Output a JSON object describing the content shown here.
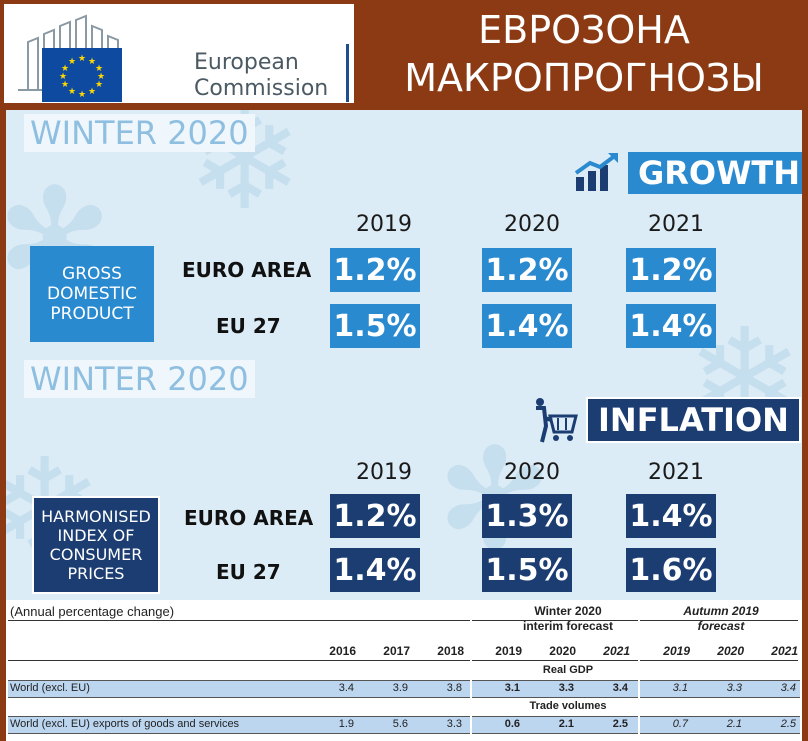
{
  "header": {
    "logo_line1": "European",
    "logo_line2": "Commission",
    "title_line1": "ЕВРОЗОНА",
    "title_line2": "МАКРОПРОГНОЗЫ"
  },
  "growth": {
    "season": "WINTER 2020",
    "category": "GROWTH",
    "indicator_lines": [
      "GROSS",
      "DOMESTIC",
      "PRODUCT"
    ],
    "years": [
      "2019",
      "2020",
      "2021"
    ],
    "rows": [
      {
        "label": "EURO AREA",
        "values": [
          "1.2%",
          "1.2%",
          "1.2%"
        ]
      },
      {
        "label": "EU 27",
        "values": [
          "1.5%",
          "1.4%",
          "1.4%"
        ]
      }
    ]
  },
  "inflation": {
    "season": "WINTER 2020",
    "category": "INFLATION",
    "indicator_lines": [
      "HARMONISED",
      "INDEX OF",
      "CONSUMER",
      "PRICES"
    ],
    "years": [
      "2019",
      "2020",
      "2021"
    ],
    "rows": [
      {
        "label": "EURO AREA",
        "values": [
          "1.2%",
          "1.3%",
          "1.4%"
        ]
      },
      {
        "label": "EU 27",
        "values": [
          "1.4%",
          "1.5%",
          "1.6%"
        ]
      }
    ]
  },
  "table": {
    "note": "(Annual percentage change)",
    "winter_head": [
      "Winter 2020",
      "interim forecast"
    ],
    "autumn_head": [
      "Autumn 2019",
      "forecast"
    ],
    "years": [
      "2016",
      "2017",
      "2018",
      "2019",
      "2020",
      "2021",
      "2019",
      "2020",
      "2021"
    ],
    "sections": [
      {
        "title": "Real GDP",
        "row": {
          "label": "World (excl. EU)",
          "values": [
            "3.4",
            "3.9",
            "3.8",
            "3.1",
            "3.3",
            "3.4",
            "3.1",
            "3.3",
            "3.4"
          ]
        }
      },
      {
        "title": "Trade volumes",
        "row": {
          "label": "World (excl. EU) exports of goods and services",
          "values": [
            "1.9",
            "5.6",
            "3.3",
            "0.6",
            "2.1",
            "2.5",
            "0.7",
            "2.1",
            "2.5"
          ]
        }
      }
    ]
  }
}
